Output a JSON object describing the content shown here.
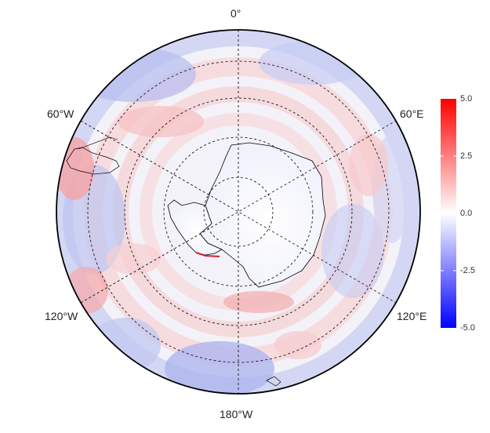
{
  "map": {
    "projection": "south-polar-stereographic",
    "lon_labels": {
      "top": "0°",
      "upper_left": "60°W",
      "upper_right": "60°E",
      "lower_left": "120°W",
      "lower_right": "120°E",
      "bottom": "180°W"
    },
    "graticule": "dashed",
    "landmass": "Antarctica"
  },
  "legend": {
    "ticks": [
      "5.0",
      "2.5",
      "0.0",
      "-2.5",
      "-5.0"
    ],
    "min": -5.0,
    "max": 5.0,
    "colors": {
      "high": "#ff0000",
      "mid": "#ffffff",
      "low": "#0000ff"
    }
  }
}
